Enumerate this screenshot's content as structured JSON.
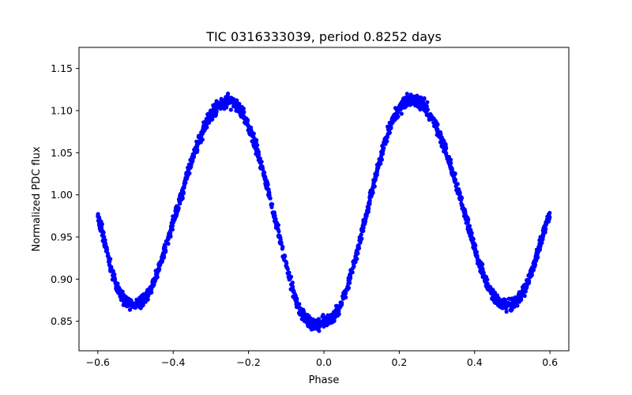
{
  "chart_data": {
    "type": "scatter",
    "title": "TIC 0316333039, period 0.8252 days",
    "xlabel": "Phase",
    "ylabel": "Normalized PDC flux",
    "xlim": [
      -0.65,
      0.65
    ],
    "ylim": [
      0.815,
      1.175
    ],
    "xticks": [
      -0.6,
      -0.4,
      -0.2,
      0.0,
      0.2,
      0.4,
      0.6
    ],
    "xtick_labels": [
      "−0.6",
      "−0.4",
      "−0.2",
      "0.0",
      "0.2",
      "0.4",
      "0.6"
    ],
    "yticks": [
      0.85,
      0.9,
      0.95,
      1.0,
      1.05,
      1.1,
      1.15
    ],
    "ytick_labels": [
      "0.85",
      "0.90",
      "0.95",
      "1.00",
      "1.05",
      "1.10",
      "1.15"
    ],
    "grid": false,
    "marker_color": "#0000ff",
    "series": [
      {
        "x": [
          -0.6,
          -0.59,
          -0.58,
          -0.57,
          -0.56,
          -0.55,
          -0.54,
          -0.53,
          -0.52,
          -0.51,
          -0.5,
          -0.49,
          -0.48,
          -0.47,
          -0.46,
          -0.45,
          -0.44,
          -0.43,
          -0.42,
          -0.41,
          -0.4,
          -0.39,
          -0.38,
          -0.37,
          -0.36,
          -0.35,
          -0.34,
          -0.33,
          -0.32,
          -0.31,
          -0.3,
          -0.29,
          -0.28,
          -0.27,
          -0.26,
          -0.25,
          -0.24,
          -0.23,
          -0.22,
          -0.21,
          -0.2,
          -0.19,
          -0.18,
          -0.17,
          -0.16,
          -0.15,
          -0.14,
          -0.13,
          -0.12,
          -0.11,
          -0.1,
          -0.09,
          -0.08,
          -0.07,
          -0.06,
          -0.05,
          -0.04,
          -0.03,
          -0.02,
          -0.01,
          0.0,
          0.01,
          0.02,
          0.03,
          0.04,
          0.05,
          0.06,
          0.07,
          0.08,
          0.09,
          0.1,
          0.11,
          0.12,
          0.13,
          0.14,
          0.15,
          0.16,
          0.17,
          0.18,
          0.19,
          0.2,
          0.21,
          0.22,
          0.23,
          0.24,
          0.25,
          0.26,
          0.27,
          0.28,
          0.29,
          0.3,
          0.31,
          0.32,
          0.33,
          0.34,
          0.35,
          0.36,
          0.37,
          0.38,
          0.39,
          0.4,
          0.41,
          0.42,
          0.43,
          0.44,
          0.45,
          0.46,
          0.47,
          0.48,
          0.49,
          0.5,
          0.51,
          0.52,
          0.53,
          0.54,
          0.55,
          0.56,
          0.57,
          0.58,
          0.59,
          0.6
        ],
        "y": [
          0.975,
          0.96,
          0.94,
          0.92,
          0.905,
          0.892,
          0.882,
          0.876,
          0.872,
          0.87,
          0.87,
          0.871,
          0.874,
          0.88,
          0.888,
          0.898,
          0.91,
          0.923,
          0.937,
          0.952,
          0.967,
          0.982,
          0.997,
          1.012,
          1.027,
          1.041,
          1.054,
          1.066,
          1.077,
          1.087,
          1.095,
          1.101,
          1.106,
          1.109,
          1.11,
          1.11,
          1.109,
          1.106,
          1.1,
          1.092,
          1.082,
          1.07,
          1.057,
          1.042,
          1.026,
          1.009,
          0.991,
          0.973,
          0.954,
          0.935,
          0.917,
          0.899,
          0.883,
          0.87,
          0.86,
          0.853,
          0.848,
          0.846,
          0.846,
          0.847,
          0.848,
          0.85,
          0.853,
          0.858,
          0.865,
          0.875,
          0.888,
          0.903,
          0.919,
          0.936,
          0.954,
          0.972,
          0.991,
          1.009,
          1.027,
          1.044,
          1.059,
          1.073,
          1.085,
          1.095,
          1.102,
          1.107,
          1.11,
          1.112,
          1.112,
          1.111,
          1.108,
          1.103,
          1.097,
          1.089,
          1.08,
          1.069,
          1.057,
          1.044,
          1.03,
          1.015,
          1.0,
          0.985,
          0.969,
          0.953,
          0.938,
          0.923,
          0.91,
          0.898,
          0.888,
          0.88,
          0.875,
          0.872,
          0.87,
          0.87,
          0.871,
          0.874,
          0.879,
          0.886,
          0.896,
          0.908,
          0.921,
          0.935,
          0.95,
          0.964,
          0.978
        ]
      }
    ]
  }
}
